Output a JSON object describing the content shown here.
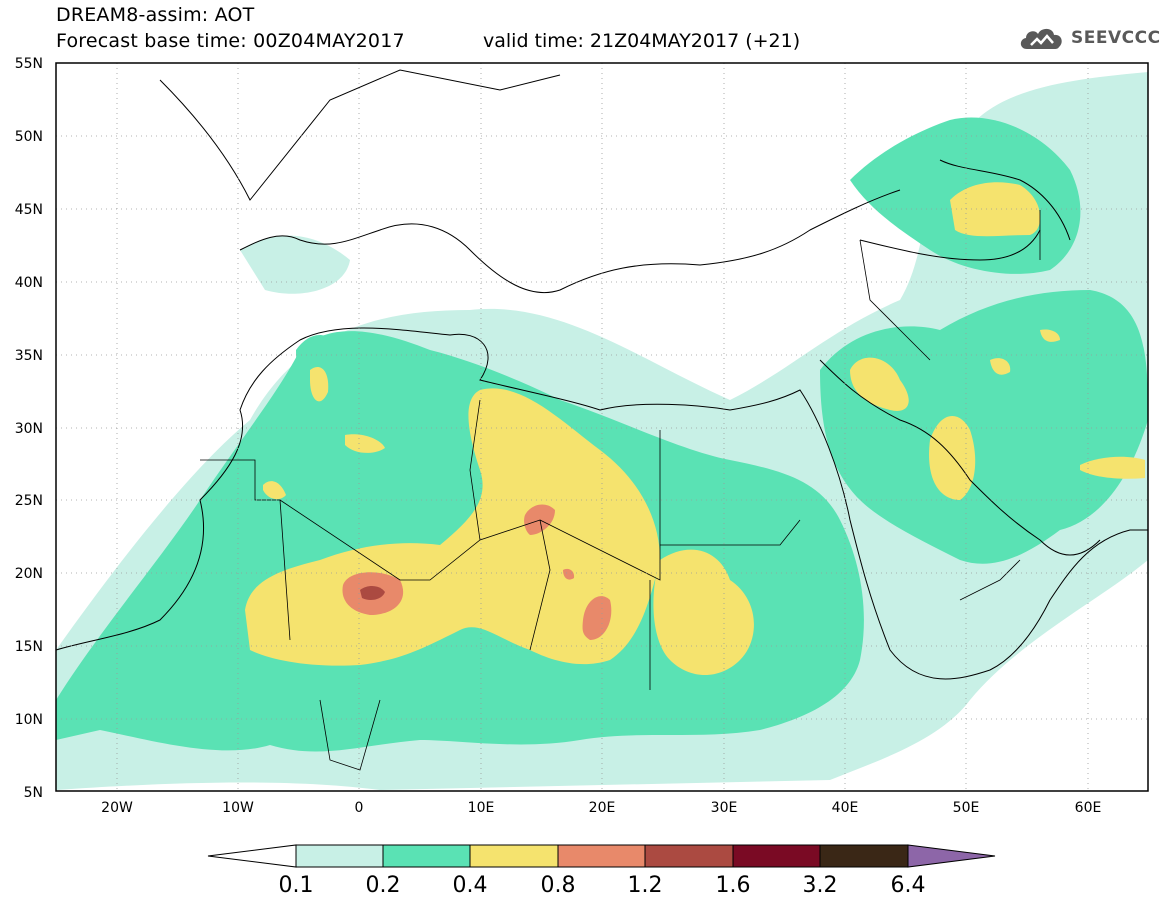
{
  "header": {
    "title_line1": "DREAM8-assim: AOT",
    "title_line2": "Forecast base time: 00Z04MAY2017",
    "valid_time": "valid time: 21Z04MAY2017 (+21)",
    "logo_text": "SEEVCCC",
    "logo_icon": "cloud-icon"
  },
  "map": {
    "lat_labels": [
      "55N",
      "50N",
      "45N",
      "40N",
      "35N",
      "30N",
      "25N",
      "20N",
      "15N",
      "10N",
      "5N"
    ],
    "lon_labels": [
      "20W",
      "10W",
      "0",
      "10E",
      "20E",
      "30E",
      "40E",
      "50E",
      "60E"
    ],
    "lon_range": [
      -25,
      65
    ],
    "lat_range": [
      5,
      55
    ]
  },
  "colorbar": {
    "levels": [
      "0.1",
      "0.2",
      "0.4",
      "0.8",
      "1.2",
      "1.6",
      "3.2",
      "6.4"
    ],
    "colors": [
      "#ffffff",
      "#c8f0e6",
      "#5ae2b4",
      "#f5e36e",
      "#e8896a",
      "#ab4a41",
      "#7a0a24",
      "#3a2716",
      "#8d66a8"
    ]
  }
}
